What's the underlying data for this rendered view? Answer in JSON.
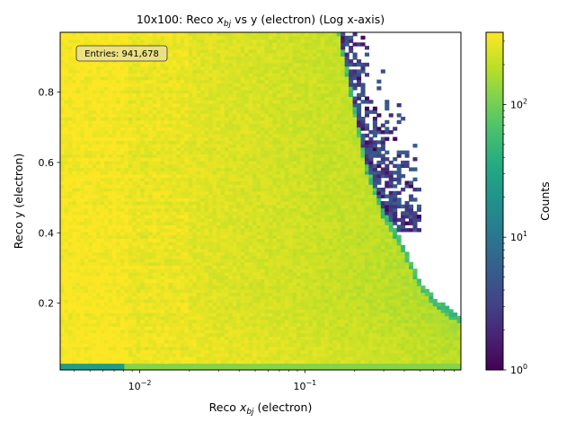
{
  "chart_data": {
    "type": "heatmap",
    "title_prefix": "10x100: Reco ",
    "title_var": "x",
    "title_sub": "bj",
    "title_suffix": " vs y (electron) (Log x-axis)",
    "xlabel_prefix": "Reco ",
    "xlabel_var": "x",
    "xlabel_sub": "bj",
    "xlabel_suffix": " (electron)",
    "ylabel": "Reco y (electron)",
    "x_scale": "log",
    "xlim": [
      0.0033,
      0.88
    ],
    "ylim": [
      0.01,
      0.97
    ],
    "x_ticks": [
      {
        "value": 0.01,
        "base": "10",
        "exp": "−2"
      },
      {
        "value": 0.1,
        "base": "10",
        "exp": "−1"
      }
    ],
    "y_ticks": [
      {
        "value": 0.2,
        "label": "0.2"
      },
      {
        "value": 0.4,
        "label": "0.4"
      },
      {
        "value": 0.6,
        "label": "0.6"
      },
      {
        "value": 0.8,
        "label": "0.8"
      }
    ],
    "x_bins": 100,
    "y_bins": 100,
    "colorbar": {
      "label": "Counts",
      "scale": "log",
      "range": [
        1,
        350
      ],
      "ticks": [
        {
          "value": 1,
          "base": "10",
          "exp": "0"
        },
        {
          "value": 10,
          "base": "10",
          "exp": "1"
        },
        {
          "value": 100,
          "base": "10",
          "exp": "2"
        }
      ],
      "colormap": "viridis"
    },
    "boundary_curve": [
      {
        "x": 0.16,
        "y": 0.97
      },
      {
        "x": 0.19,
        "y": 0.8
      },
      {
        "x": 0.23,
        "y": 0.6
      },
      {
        "x": 0.3,
        "y": 0.45
      },
      {
        "x": 0.38,
        "y": 0.37
      },
      {
        "x": 0.5,
        "y": 0.25
      },
      {
        "x": 0.62,
        "y": 0.2
      },
      {
        "x": 0.88,
        "y": 0.15
      }
    ],
    "annotation": "Entries: 941,678",
    "grid": false
  }
}
